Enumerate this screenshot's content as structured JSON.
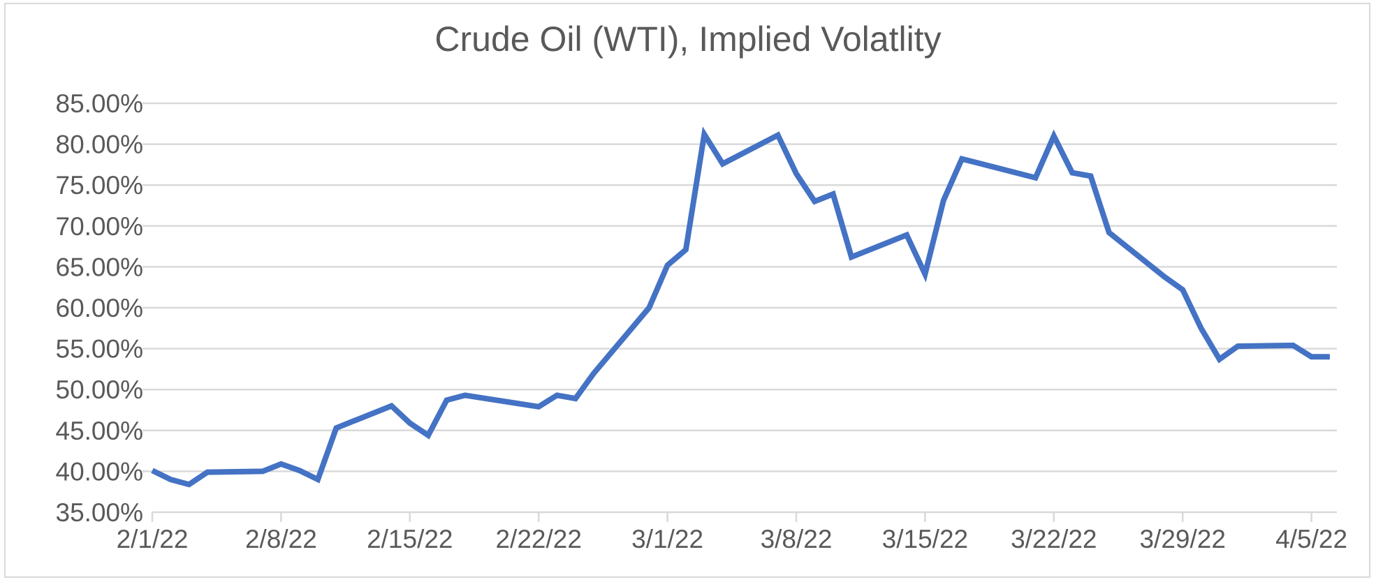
{
  "chart_data": {
    "type": "line",
    "title": "Crude Oil (WTI), Implied Volatlity",
    "xlabel": "",
    "ylabel": "",
    "ylim": [
      0.35,
      0.85
    ],
    "y_ticks": [
      "35.00%",
      "40.00%",
      "45.00%",
      "50.00%",
      "55.00%",
      "60.00%",
      "65.00%",
      "70.00%",
      "75.00%",
      "80.00%",
      "85.00%"
    ],
    "x_ticks": [
      "2/1/22",
      "2/8/22",
      "2/15/22",
      "2/22/22",
      "3/1/22",
      "3/8/22",
      "3/15/22",
      "3/22/22",
      "3/29/22",
      "4/5/22"
    ],
    "grid": true,
    "legend": "none",
    "colors": {
      "series": "#4472c4",
      "grid": "#d9d9d9",
      "text": "#595959"
    },
    "series": [
      {
        "x": [
          "2/1/22",
          "2/2/22",
          "2/3/22",
          "2/4/22",
          "2/7/22",
          "2/8/22",
          "2/9/22",
          "2/10/22",
          "2/11/22",
          "2/14/22",
          "2/15/22",
          "2/16/22",
          "2/17/22",
          "2/18/22",
          "2/22/22",
          "2/23/22",
          "2/24/22",
          "2/25/22",
          "2/28/22",
          "3/1/22",
          "3/2/22",
          "3/3/22",
          "3/4/22",
          "3/7/22",
          "3/8/22",
          "3/9/22",
          "3/10/22",
          "3/11/22",
          "3/14/22",
          "3/15/22",
          "3/16/22",
          "3/17/22",
          "3/21/22",
          "3/22/22",
          "3/23/22",
          "3/24/22",
          "3/25/22",
          "3/28/22",
          "3/29/22",
          "3/30/22",
          "3/31/22",
          "4/1/22",
          "4/4/22",
          "4/5/22",
          "4/6/22"
        ],
        "values": [
          0.401,
          0.39,
          0.384,
          0.399,
          0.4,
          0.409,
          0.401,
          0.39,
          0.453,
          0.48,
          0.459,
          0.444,
          0.487,
          0.493,
          0.479,
          0.493,
          0.489,
          0.52,
          0.6,
          0.652,
          0.671,
          0.812,
          0.776,
          0.811,
          0.764,
          0.73,
          0.739,
          0.662,
          0.689,
          0.641,
          0.731,
          0.782,
          0.759,
          0.81,
          0.765,
          0.761,
          0.692,
          0.638,
          0.622,
          0.575,
          0.537,
          0.553,
          0.554,
          0.54,
          0.54
        ]
      }
    ]
  }
}
